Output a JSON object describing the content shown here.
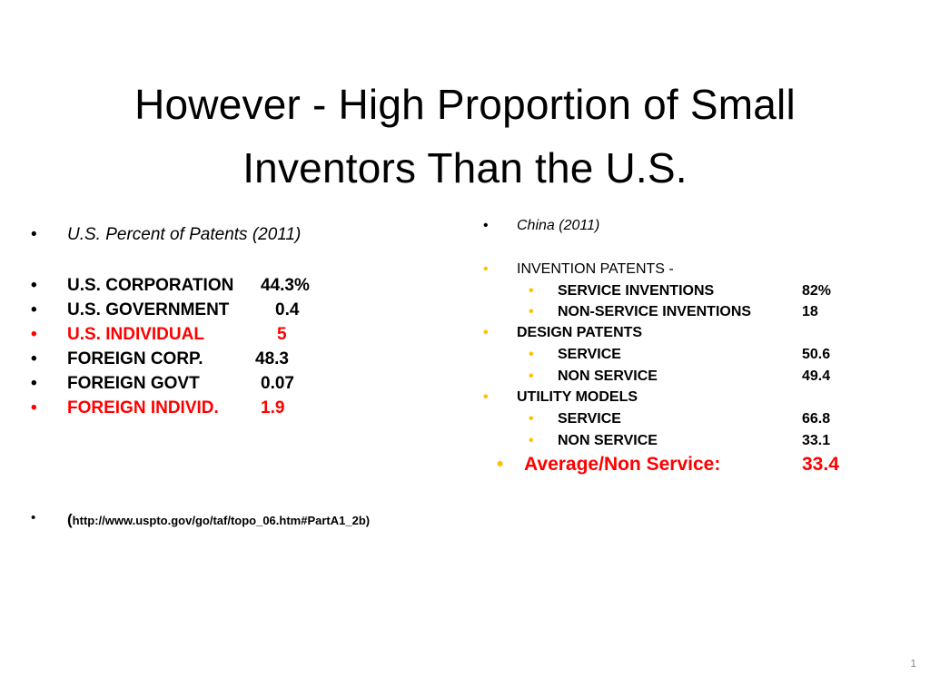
{
  "title": {
    "line1": "However - High Proportion of  Small",
    "line2": "Inventors Than the U.S."
  },
  "left": {
    "heading": "U.S. Percent of Patents (2011)",
    "items": [
      {
        "label": "U.S. CORPORATION",
        "value": "44.3%",
        "color": "#000000"
      },
      {
        "label": "U.S. GOVERNMENT",
        "value": "0.4",
        "color": "#000000"
      },
      {
        "label": "U.S. INDIVIDUAL",
        "value": "5",
        "color": "#ff0000"
      },
      {
        "label": "FOREIGN CORP.",
        "value": "48.3",
        "color": "#000000"
      },
      {
        "label": "FOREIGN GOVT",
        "value": "0.07",
        "color": "#000000"
      },
      {
        "label": "FOREIGN INDIVID.",
        "value": "1.9",
        "color": "#ff0000"
      }
    ],
    "source_open": "(",
    "source_url": "http://www.uspto.gov/go/taf/topo_06.htm#PartA1_2b)"
  },
  "right": {
    "heading": "China (2011)",
    "invention": {
      "label": "INVENTION PATENTS -",
      "service_label": "SERVICE INVENTIONS",
      "service_value": "82%",
      "nonservice_label": "NON-SERVICE INVENTIONS",
      "nonservice_value": "18"
    },
    "design": {
      "label": "DESIGN PATENTS",
      "service_label": "SERVICE",
      "service_value": "50.6",
      "nonservice_label": "NON SERVICE",
      "nonservice_value": "49.4"
    },
    "utility": {
      "label": "UTILITY MODELS",
      "service_label": "SERVICE",
      "service_value": "66.8",
      "nonservice_label": "NON SERVICE",
      "nonservice_value": "33.1"
    },
    "average_label": "Average/Non Service:",
    "average_value": "33.4"
  },
  "bullet": "•",
  "page_number": "1",
  "colors": {
    "highlight": "#ff0000",
    "sub_bullet": "#ffc000"
  }
}
